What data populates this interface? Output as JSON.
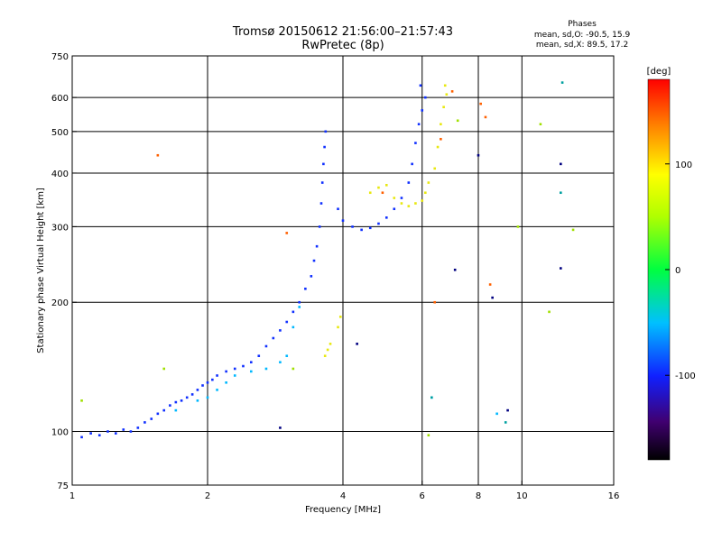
{
  "header": {
    "title_line1": "Tromsø 20150612 21:56:00–21:57:43",
    "title_line2": "RwPretec (8p)"
  },
  "stats": {
    "heading": "Phases",
    "line1": "mean, sd,O: -90.5, 15.9",
    "line2": "mean, sd,X:  89.5, 17.2"
  },
  "colorbar": {
    "label": "[deg]",
    "ticks": [
      "100",
      "0",
      "-100"
    ],
    "tick_values": [
      100,
      0,
      -100
    ],
    "range": [
      -180,
      180
    ]
  },
  "chart_data": {
    "type": "scatter",
    "xlabel": "Frequency [MHz]",
    "ylabel": "Stationary phase Virtual Height [km]",
    "x_scale": "log",
    "y_scale": "log",
    "xlim": [
      1,
      16
    ],
    "ylim": [
      75,
      750
    ],
    "grid": true,
    "x_ticks": [
      "1",
      "2",
      "4",
      "6",
      "8",
      "10",
      "16"
    ],
    "x_tick_values": [
      1,
      2,
      4,
      6,
      8,
      10,
      16
    ],
    "y_ticks": [
      "750",
      "600",
      "500",
      "400",
      "300",
      "200",
      "100",
      "75"
    ],
    "y_tick_values": [
      750,
      600,
      500,
      400,
      300,
      200,
      100,
      75
    ],
    "x_grid": [
      2,
      4,
      6,
      8,
      10
    ],
    "y_grid": [
      100,
      200,
      300,
      400,
      500,
      600
    ],
    "series": [
      {
        "color": "#1030ff",
        "phase_deg": -95,
        "points": [
          [
            1.05,
            97
          ],
          [
            1.1,
            99
          ],
          [
            1.15,
            98
          ],
          [
            1.2,
            100
          ],
          [
            1.25,
            99
          ],
          [
            1.3,
            101
          ],
          [
            1.35,
            100
          ],
          [
            1.4,
            102
          ],
          [
            1.45,
            105
          ],
          [
            1.5,
            107
          ],
          [
            1.55,
            110
          ],
          [
            1.6,
            112
          ],
          [
            1.65,
            115
          ],
          [
            1.7,
            117
          ],
          [
            1.75,
            118
          ],
          [
            1.8,
            120
          ],
          [
            1.85,
            122
          ],
          [
            1.9,
            125
          ],
          [
            1.95,
            128
          ],
          [
            2.0,
            130
          ],
          [
            2.05,
            132
          ],
          [
            2.1,
            135
          ],
          [
            2.2,
            138
          ],
          [
            2.3,
            140
          ],
          [
            2.4,
            142
          ],
          [
            2.5,
            145
          ],
          [
            2.6,
            150
          ],
          [
            2.7,
            158
          ],
          [
            2.8,
            165
          ],
          [
            2.9,
            172
          ],
          [
            3.0,
            180
          ],
          [
            3.1,
            190
          ],
          [
            3.2,
            200
          ],
          [
            3.3,
            215
          ],
          [
            3.4,
            230
          ],
          [
            3.45,
            250
          ],
          [
            3.5,
            270
          ],
          [
            3.55,
            300
          ],
          [
            3.58,
            340
          ],
          [
            3.6,
            380
          ],
          [
            3.62,
            420
          ],
          [
            3.64,
            460
          ],
          [
            3.66,
            500
          ],
          [
            3.9,
            330
          ],
          [
            4.0,
            310
          ],
          [
            4.2,
            300
          ],
          [
            4.4,
            295
          ],
          [
            4.6,
            298
          ],
          [
            4.8,
            305
          ],
          [
            5.0,
            315
          ],
          [
            5.2,
            330
          ],
          [
            5.4,
            350
          ],
          [
            5.6,
            380
          ],
          [
            5.7,
            420
          ],
          [
            5.8,
            470
          ],
          [
            5.9,
            520
          ],
          [
            6.0,
            560
          ],
          [
            6.1,
            600
          ],
          [
            5.95,
            640
          ]
        ]
      },
      {
        "color": "#00b8ff",
        "phase_deg": -60,
        "points": [
          [
            2.0,
            120
          ],
          [
            2.1,
            125
          ],
          [
            2.2,
            130
          ],
          [
            2.3,
            135
          ],
          [
            2.5,
            138
          ],
          [
            2.7,
            140
          ],
          [
            2.9,
            145
          ],
          [
            3.0,
            150
          ],
          [
            1.7,
            112
          ],
          [
            1.9,
            118
          ],
          [
            3.1,
            175
          ],
          [
            3.2,
            195
          ],
          [
            8.8,
            110
          ],
          [
            6.3,
            120
          ]
        ]
      },
      {
        "color": "#e8e810",
        "phase_deg": 100,
        "points": [
          [
            3.65,
            150
          ],
          [
            3.7,
            155
          ],
          [
            3.75,
            160
          ],
          [
            3.9,
            175
          ],
          [
            3.95,
            185
          ],
          [
            4.6,
            360
          ],
          [
            4.8,
            370
          ],
          [
            5.0,
            375
          ],
          [
            5.2,
            350
          ],
          [
            5.4,
            340
          ],
          [
            5.6,
            335
          ],
          [
            5.8,
            340
          ],
          [
            6.0,
            345
          ],
          [
            6.1,
            360
          ],
          [
            6.2,
            380
          ],
          [
            6.4,
            410
          ],
          [
            6.5,
            460
          ],
          [
            6.6,
            520
          ],
          [
            6.7,
            570
          ],
          [
            6.8,
            610
          ],
          [
            6.75,
            640
          ]
        ]
      },
      {
        "color": "#ff6000",
        "phase_deg": 160,
        "points": [
          [
            1.55,
            440
          ],
          [
            3.0,
            290
          ],
          [
            4.9,
            360
          ],
          [
            6.4,
            200
          ],
          [
            6.6,
            480
          ],
          [
            7.0,
            620
          ],
          [
            8.1,
            580
          ],
          [
            8.3,
            540
          ],
          [
            8.5,
            220
          ]
        ]
      },
      {
        "color": "#000080",
        "phase_deg": -140,
        "points": [
          [
            2.9,
            102
          ],
          [
            4.3,
            160
          ],
          [
            7.1,
            238
          ],
          [
            8.0,
            440
          ],
          [
            8.6,
            205
          ],
          [
            9.3,
            112
          ],
          [
            12.2,
            420
          ],
          [
            12.2,
            240
          ]
        ]
      },
      {
        "color": "#a0e000",
        "phase_deg": 60,
        "points": [
          [
            1.05,
            118
          ],
          [
            1.6,
            140
          ],
          [
            3.1,
            140
          ],
          [
            6.2,
            98
          ],
          [
            7.2,
            530
          ],
          [
            9.8,
            300
          ],
          [
            11.0,
            520
          ],
          [
            11.5,
            190
          ],
          [
            13.0,
            295
          ]
        ]
      },
      {
        "color": "#00a0a0",
        "phase_deg": -40,
        "points": [
          [
            6.3,
            120
          ],
          [
            9.2,
            105
          ],
          [
            12.2,
            360
          ],
          [
            12.3,
            650
          ]
        ]
      }
    ]
  }
}
